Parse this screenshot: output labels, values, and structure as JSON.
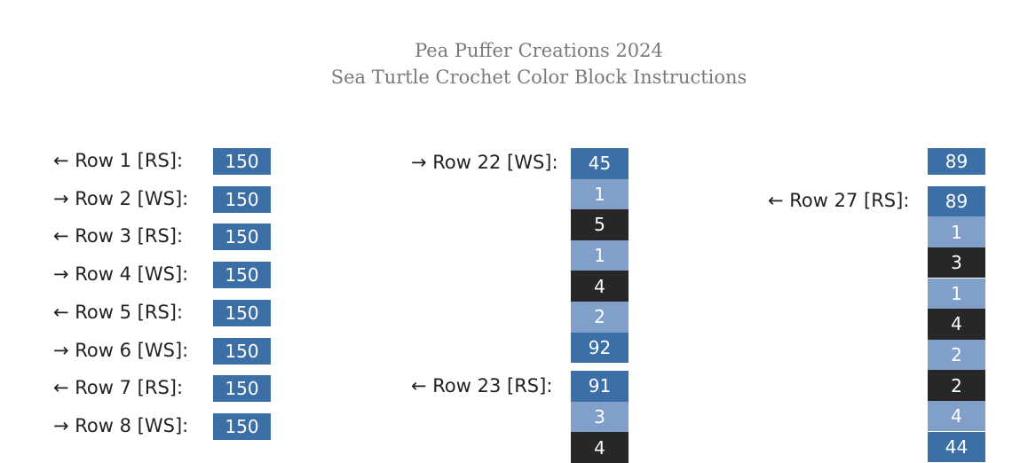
{
  "header": {
    "title": "Pea Puffer Creations 2024",
    "subtitle": "Sea Turtle Crochet Color Block Instructions"
  },
  "columns": [
    {
      "rows": [
        {
          "label": "← Row 1 [RS]:",
          "blocks": [
            {
              "count": 150,
              "color": "#3b6fa6"
            }
          ]
        },
        {
          "label": "→ Row 2 [WS]:",
          "blocks": [
            {
              "count": 150,
              "color": "#3b6fa6"
            }
          ]
        },
        {
          "label": "← Row 3 [RS]:",
          "blocks": [
            {
              "count": 150,
              "color": "#3b6fa6"
            }
          ]
        },
        {
          "label": "→ Row 4 [WS]:",
          "blocks": [
            {
              "count": 150,
              "color": "#3b6fa6"
            }
          ]
        },
        {
          "label": "← Row 5 [RS]:",
          "blocks": [
            {
              "count": 150,
              "color": "#3b6fa6"
            }
          ]
        },
        {
          "label": "→ Row 6 [WS]:",
          "blocks": [
            {
              "count": 150,
              "color": "#3b6fa6"
            }
          ]
        },
        {
          "label": "← Row 7 [RS]:",
          "blocks": [
            {
              "count": 150,
              "color": "#3b6fa6"
            }
          ]
        },
        {
          "label": "→ Row 8 [WS]:",
          "blocks": [
            {
              "count": 150,
              "color": "#3b6fa6"
            }
          ]
        }
      ]
    },
    {
      "rows": [
        {
          "label": "→ Row 22 [WS]:",
          "blocks": [
            {
              "count": 45,
              "color": "#3b6fa6"
            },
            {
              "count": 1,
              "color": "#809fc9"
            },
            {
              "count": 5,
              "color": "#272727"
            },
            {
              "count": 1,
              "color": "#809fc9"
            },
            {
              "count": 4,
              "color": "#272727"
            },
            {
              "count": 2,
              "color": "#809fc9"
            },
            {
              "count": 92,
              "color": "#3b6fa6"
            }
          ]
        },
        {
          "label": "← Row 23 [RS]:",
          "blocks": [
            {
              "count": 91,
              "color": "#3b6fa6"
            },
            {
              "count": 3,
              "color": "#809fc9"
            },
            {
              "count": 4,
              "color": "#272727"
            }
          ]
        }
      ]
    },
    {
      "rows": [
        {
          "label": null,
          "blocks": [
            {
              "count": 89,
              "color": "#3b6fa6"
            }
          ]
        },
        {
          "label": "← Row 27 [RS]:",
          "blocks": [
            {
              "count": 89,
              "color": "#3b6fa6"
            },
            {
              "count": 1,
              "color": "#809fc9"
            },
            {
              "count": 3,
              "color": "#272727"
            },
            {
              "count": 1,
              "color": "#809fc9"
            },
            {
              "count": 4,
              "color": "#272727"
            },
            {
              "count": 2,
              "color": "#809fc9"
            },
            {
              "count": 2,
              "color": "#272727"
            },
            {
              "count": 4,
              "color": "#809fc9"
            },
            {
              "count": 44,
              "color": "#3b6fa6"
            }
          ]
        }
      ]
    }
  ]
}
